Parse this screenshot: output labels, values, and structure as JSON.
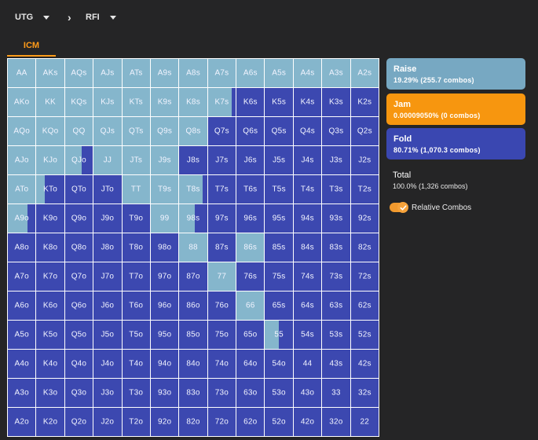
{
  "header": {
    "position_label": "UTG",
    "arrow": "›",
    "action_label": "RFI"
  },
  "tabs": [
    {
      "label": "ICM",
      "active": true
    }
  ],
  "legend": {
    "raise": {
      "title": "Raise",
      "stats": "19.29% (255.7 combos)",
      "color": "#77a8c2"
    },
    "jam": {
      "title": "Jam",
      "stats": "0.00009050% (0 combos)",
      "color": "#f7960f"
    },
    "fold": {
      "title": "Fold",
      "stats": "80.71% (1,070.3 combos)",
      "color": "#3a47b1"
    },
    "total": {
      "title": "Total",
      "stats": "100.0% (1,326 combos)"
    },
    "relative_combos": {
      "label": "Relative Combos",
      "checked": true
    }
  },
  "ranks": [
    "A",
    "K",
    "Q",
    "J",
    "T",
    "9",
    "8",
    "7",
    "6",
    "5",
    "4",
    "3",
    "2"
  ],
  "raise_freq": [
    [
      1,
      1,
      1,
      1,
      1,
      1,
      1,
      1,
      1,
      1,
      1,
      1,
      1
    ],
    [
      1,
      1,
      1,
      1,
      1,
      1,
      1,
      0.85,
      0,
      0,
      0,
      0,
      0
    ],
    [
      1,
      1,
      1,
      1,
      1,
      1,
      1,
      0,
      0,
      0,
      0,
      0,
      0
    ],
    [
      1,
      1,
      0.6,
      1,
      1,
      1,
      0,
      0,
      0,
      0,
      0,
      0,
      0
    ],
    [
      1,
      0.3,
      0,
      0,
      1,
      1,
      0.85,
      0,
      0,
      0,
      0,
      0,
      0
    ],
    [
      0.7,
      0,
      0,
      0,
      0,
      1,
      0.55,
      0,
      0,
      0,
      0,
      0,
      0
    ],
    [
      0,
      0,
      0,
      0,
      0,
      0,
      1,
      0,
      1,
      0,
      0,
      0,
      0
    ],
    [
      0,
      0,
      0,
      0,
      0,
      0,
      0,
      1,
      0,
      0,
      0,
      0,
      0
    ],
    [
      0,
      0,
      0,
      0,
      0,
      0,
      0,
      0,
      1,
      0,
      0,
      0,
      0
    ],
    [
      0,
      0,
      0,
      0,
      0,
      0,
      0,
      0,
      0,
      0.5,
      0,
      0,
      0
    ],
    [
      0,
      0,
      0,
      0,
      0,
      0,
      0,
      0,
      0,
      0,
      0,
      0,
      0
    ],
    [
      0,
      0,
      0,
      0,
      0,
      0,
      0,
      0,
      0,
      0,
      0,
      0,
      0
    ],
    [
      0,
      0,
      0,
      0,
      0,
      0,
      0,
      0,
      0,
      0,
      0,
      0,
      0
    ]
  ],
  "colors": {
    "raise": "#85b6cc",
    "fold": "#3c48b0",
    "accent": "#ff9b19"
  }
}
